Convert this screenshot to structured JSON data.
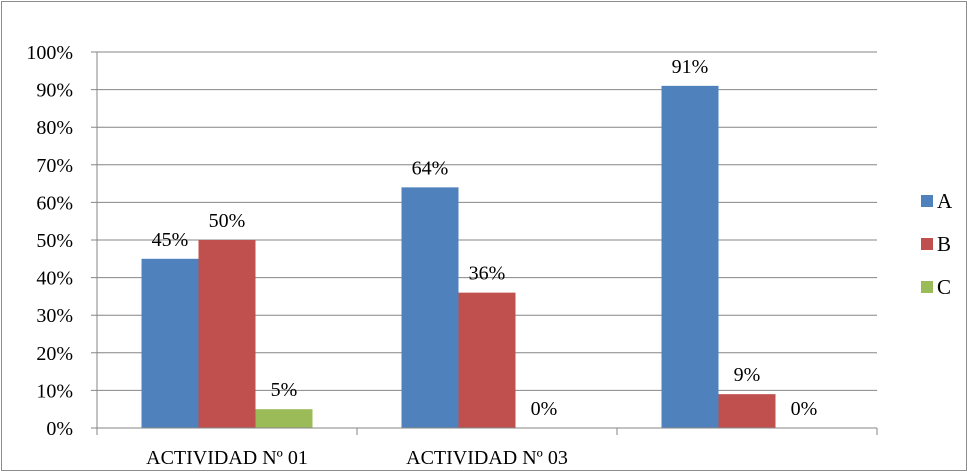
{
  "chart_data": {
    "type": "bar",
    "categories": [
      "ACTIVIDAD Nº 01",
      "ACTIVIDAD Nº 03",
      ""
    ],
    "series": [
      {
        "name": "A",
        "values": [
          45,
          64,
          91
        ],
        "labels": [
          "45%",
          "64%",
          "91%"
        ],
        "color": "#4f81bd"
      },
      {
        "name": "B",
        "values": [
          50,
          36,
          9
        ],
        "labels": [
          "50%",
          "36%",
          "9%"
        ],
        "color": "#c0504d"
      },
      {
        "name": "C",
        "values": [
          5,
          0,
          0
        ],
        "labels": [
          "5%",
          "0%",
          "0%"
        ],
        "color": "#9bbb59"
      }
    ],
    "y_ticks": [
      "0%",
      "10%",
      "20%",
      "30%",
      "40%",
      "50%",
      "60%",
      "70%",
      "80%",
      "90%",
      "100%"
    ],
    "ylim": [
      0,
      100
    ],
    "grid": true,
    "legend_position": "right"
  }
}
